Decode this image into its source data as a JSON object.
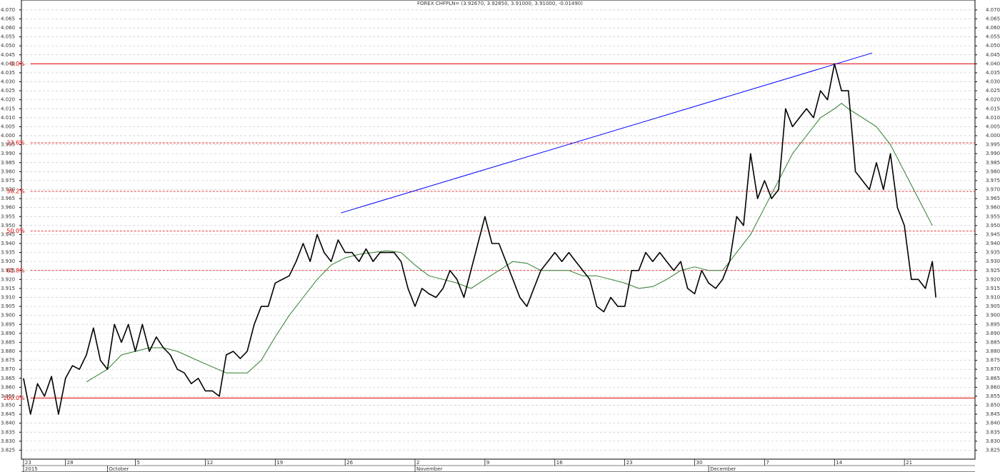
{
  "chart_data": {
    "type": "line",
    "title": "FOREX CHFPLN= (3.92670, 3.92850, 3.91000, 3.91000, -0.01490)",
    "xlim": [
      -0.15,
      68.05
    ],
    "ylim": [
      3.82,
      4.0755
    ],
    "grid": true,
    "yticks": [
      3.825,
      {
        "value": 3.83,
        "label": "3.830"
      },
      3.835,
      {
        "value": 3.84,
        "label": "3.840"
      },
      3.845,
      {
        "value": 3.85,
        "label": "3.850"
      },
      3.855,
      {
        "value": 3.86,
        "label": "3.860"
      },
      3.865,
      {
        "value": 3.87,
        "label": "3.870"
      },
      3.875,
      {
        "value": 3.88,
        "label": "3.880"
      },
      3.885,
      {
        "value": 3.89,
        "label": "3.890"
      },
      3.895,
      {
        "value": 3.9,
        "label": "3.900"
      },
      3.905,
      {
        "value": 3.91,
        "label": "3.910"
      },
      3.915,
      {
        "value": 3.92,
        "label": "3.920"
      },
      3.925,
      {
        "value": 3.93,
        "label": "3.930"
      },
      3.935,
      {
        "value": 3.94,
        "label": "3.940"
      },
      3.945,
      {
        "value": 3.95,
        "label": "3.950"
      },
      3.955,
      {
        "value": 3.96,
        "label": "3.960"
      },
      3.965,
      {
        "value": 3.97,
        "label": "3.970"
      },
      3.975,
      {
        "value": 3.98,
        "label": "3.980"
      },
      3.985,
      {
        "value": 3.99,
        "label": "3.990"
      },
      3.995,
      {
        "value": 4,
        "label": "4.000"
      },
      4.005,
      {
        "value": 4.01,
        "label": "4.010"
      },
      4.015,
      {
        "value": 4.02,
        "label": "4.020"
      },
      4.025,
      {
        "value": 4.03,
        "label": "4.030"
      },
      4.035,
      {
        "value": 4.04,
        "label": "4.040"
      },
      4.045,
      {
        "value": 4.05,
        "label": "4.050"
      },
      4.055,
      {
        "value": 4.06,
        "label": "4.060"
      },
      4.065,
      {
        "value": 4.07,
        "label": "4.070"
      }
    ],
    "xticks": [
      {
        "value": 0,
        "label": "23"
      },
      {
        "value": 3,
        "label": "28"
      },
      {
        "value": 8,
        "label": "5"
      },
      {
        "value": 13,
        "label": "12"
      },
      {
        "value": 18,
        "label": "19"
      },
      {
        "value": 23,
        "label": "26"
      },
      {
        "value": 28,
        "label": "2"
      },
      {
        "value": 33,
        "label": "9"
      },
      {
        "value": 38,
        "label": "16"
      },
      {
        "value": 43,
        "label": "23"
      },
      {
        "value": 48,
        "label": "30"
      },
      {
        "value": 53,
        "label": "7"
      },
      {
        "value": 58,
        "label": "14"
      },
      {
        "value": 63,
        "label": "21"
      }
    ],
    "month_ticks": [
      {
        "value": 0,
        "label": "2015"
      },
      {
        "value": 6,
        "label": "October"
      },
      {
        "value": 28,
        "label": "November"
      },
      {
        "value": 49,
        "label": "December"
      }
    ],
    "series": [
      {
        "color": "#000000",
        "x": [
          0,
          0.5,
          1,
          1.5,
          2,
          2.5,
          3,
          3.5,
          4,
          4.5,
          5,
          5.5,
          6,
          6.5,
          7,
          7.5,
          8,
          8.5,
          9,
          9.5,
          10,
          10.5,
          11,
          11.5,
          12,
          12.5,
          13,
          13.5,
          14,
          14.5,
          15,
          15.5,
          16,
          16.5,
          17,
          17.5,
          18,
          18.5,
          19,
          19.5,
          20,
          20.5,
          21,
          21.5,
          22,
          22.5,
          23,
          23.5,
          24,
          24.5,
          25,
          25.5,
          26,
          26.5,
          27,
          27.5,
          28,
          28.5,
          29,
          29.5,
          30,
          30.5,
          31,
          31.5,
          32,
          32.5,
          33,
          33.5,
          34,
          34.5,
          35,
          35.5,
          36,
          36.5,
          37,
          37.5,
          38,
          38.5,
          39,
          39.5,
          40,
          40.5,
          41,
          41.5,
          42,
          42.5,
          43,
          43.5,
          44,
          44.5,
          45,
          45.5,
          46,
          46.5,
          47,
          47.5,
          48,
          48.5,
          49,
          49.5,
          50,
          50.5,
          51,
          51.5,
          52,
          52.5,
          53,
          53.5,
          54,
          54.5,
          55,
          55.5,
          56,
          56.5,
          57,
          57.5,
          58,
          58.5,
          59,
          59.5,
          60,
          60.5,
          61,
          61.5,
          62,
          62.5,
          63,
          63.5,
          64,
          64.5,
          65,
          65.25
        ],
        "values": [
          3.865,
          3.845,
          3.862,
          3.855,
          3.866,
          3.845,
          3.865,
          3.872,
          3.87,
          3.878,
          3.893,
          3.875,
          3.87,
          3.895,
          3.885,
          3.895,
          3.88,
          3.895,
          3.88,
          3.888,
          3.882,
          3.878,
          3.87,
          3.868,
          3.862,
          3.865,
          3.858,
          3.858,
          3.855,
          3.878,
          3.88,
          3.876,
          3.88,
          3.895,
          3.905,
          3.905,
          3.918,
          3.92,
          3.922,
          3.93,
          3.94,
          3.93,
          3.945,
          3.935,
          3.93,
          3.942,
          3.935,
          3.935,
          3.93,
          3.937,
          3.93,
          3.935,
          3.935,
          3.935,
          3.93,
          3.915,
          3.905,
          3.915,
          3.912,
          3.91,
          3.915,
          3.925,
          3.92,
          3.91,
          3.925,
          3.94,
          3.955,
          3.94,
          3.94,
          3.93,
          3.92,
          3.91,
          3.905,
          3.915,
          3.925,
          3.93,
          3.935,
          3.93,
          3.935,
          3.93,
          3.925,
          3.92,
          3.905,
          3.902,
          3.91,
          3.905,
          3.905,
          3.925,
          3.925,
          3.935,
          3.93,
          3.935,
          3.93,
          3.925,
          3.93,
          3.915,
          3.912,
          3.925,
          3.918,
          3.915,
          3.92,
          3.93,
          3.955,
          3.95,
          3.99,
          3.965,
          3.975,
          3.965,
          3.97,
          4.015,
          4.005,
          4.01,
          4.015,
          4.01,
          4.025,
          4.02,
          4.04,
          4.025,
          4.025,
          3.98,
          3.975,
          3.97,
          3.985,
          3.97,
          3.99,
          3.96,
          3.95,
          3.92,
          3.92,
          3.915,
          3.93,
          3.91
        ]
      },
      {
        "color": "#2e7d2e",
        "x": [
          4.5,
          6,
          7,
          9,
          10,
          11,
          13,
          14.5,
          16,
          17,
          18,
          19,
          20,
          21,
          22,
          23,
          24,
          26,
          27,
          28,
          29,
          30,
          31,
          32,
          33,
          34,
          35,
          36,
          37,
          38,
          39,
          40,
          41,
          42,
          43,
          44,
          45,
          46,
          47,
          48,
          49,
          50,
          51,
          52,
          53,
          54,
          55,
          56,
          57,
          58,
          58.5,
          59,
          60,
          61,
          62,
          63,
          64,
          65
        ],
        "values": [
          3.863,
          3.87,
          3.878,
          3.882,
          3.882,
          3.88,
          3.873,
          3.868,
          3.868,
          3.875,
          3.888,
          3.9,
          3.91,
          3.92,
          3.928,
          3.932,
          3.934,
          3.936,
          3.935,
          3.928,
          3.922,
          3.92,
          3.918,
          3.915,
          3.92,
          3.925,
          3.93,
          3.929,
          3.925,
          3.925,
          3.925,
          3.922,
          3.922,
          3.92,
          3.918,
          3.915,
          3.916,
          3.92,
          3.925,
          3.927,
          3.925,
          3.925,
          3.935,
          3.945,
          3.96,
          3.975,
          3.99,
          4.0,
          4.01,
          4.015,
          4.018,
          4.015,
          4.01,
          4.005,
          3.995,
          3.98,
          3.965,
          3.95
        ]
      }
    ],
    "fib_levels": [
      {
        "label": "0.0%",
        "value": 4.04
      },
      {
        "label": "23.6%",
        "value": 3.996
      },
      {
        "label": "38.2%",
        "value": 3.969
      },
      {
        "label": "50.0%",
        "value": 3.947
      },
      {
        "label": "61.8%",
        "value": 3.925
      },
      {
        "label": "100.0%",
        "value": 3.854
      }
    ],
    "fib_color": "#e00000",
    "trendline": {
      "color": "#0000ff",
      "x": [
        22.7,
        60.7
      ],
      "values": [
        3.957,
        4.046
      ]
    }
  }
}
